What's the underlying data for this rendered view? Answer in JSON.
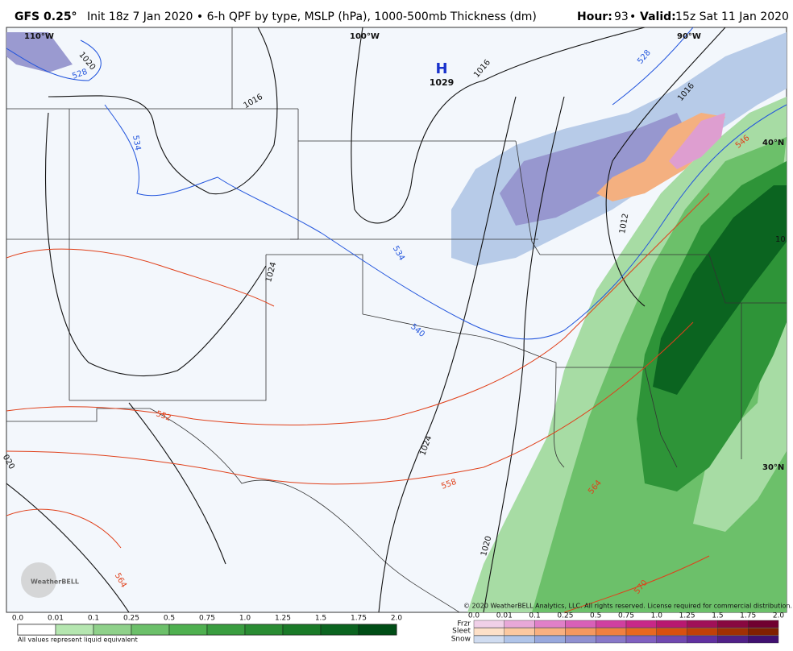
{
  "header": {
    "model": "GFS 0.25°",
    "description": "Init 18z 7 Jan 2020 • 6-h QPF by type, MSLP (hPa), 1000-500mb Thickness (dm)",
    "hour": "Hour:",
    "hour_value": "93",
    "separator": "•",
    "valid": "Valid:",
    "valid_value": "15z Sat 11 Jan 2020"
  },
  "map": {
    "labels": [
      "110°W",
      "100°W",
      "90°W",
      "40°N",
      "30°N"
    ],
    "high": {
      "symbol": "H",
      "pressure": "1029"
    },
    "isobars": [
      "1020",
      "1016",
      "1016",
      "1016",
      "1012",
      "1024",
      "1024",
      "1020",
      "020",
      "10"
    ],
    "thickness_blue": [
      "528",
      "534",
      "528",
      "534",
      "540"
    ],
    "thickness_red": [
      "546",
      "552",
      "558",
      "564",
      "564",
      "570"
    ],
    "logo": "WeatherBELL",
    "copyright": "© 2020 WeatherBELL Analytics, LLC. All rights reserved. License required for commercial distribution."
  },
  "legend": {
    "ticks": [
      "0.0",
      "0.01",
      "0.1",
      "0.25",
      "0.5",
      "0.75",
      "1.0",
      "1.25",
      "1.5",
      "1.75",
      "2.0"
    ],
    "note": "All values represent liquid equivalent",
    "ptype_ticks": [
      "0.0",
      "0.01",
      "0.1",
      "0.25",
      "0.5",
      "0.75",
      "1.0",
      "1.25",
      "1.5",
      "1.75",
      "2.0"
    ],
    "ptypes": [
      "Frzr",
      "Sleet",
      "Snow"
    ]
  }
}
